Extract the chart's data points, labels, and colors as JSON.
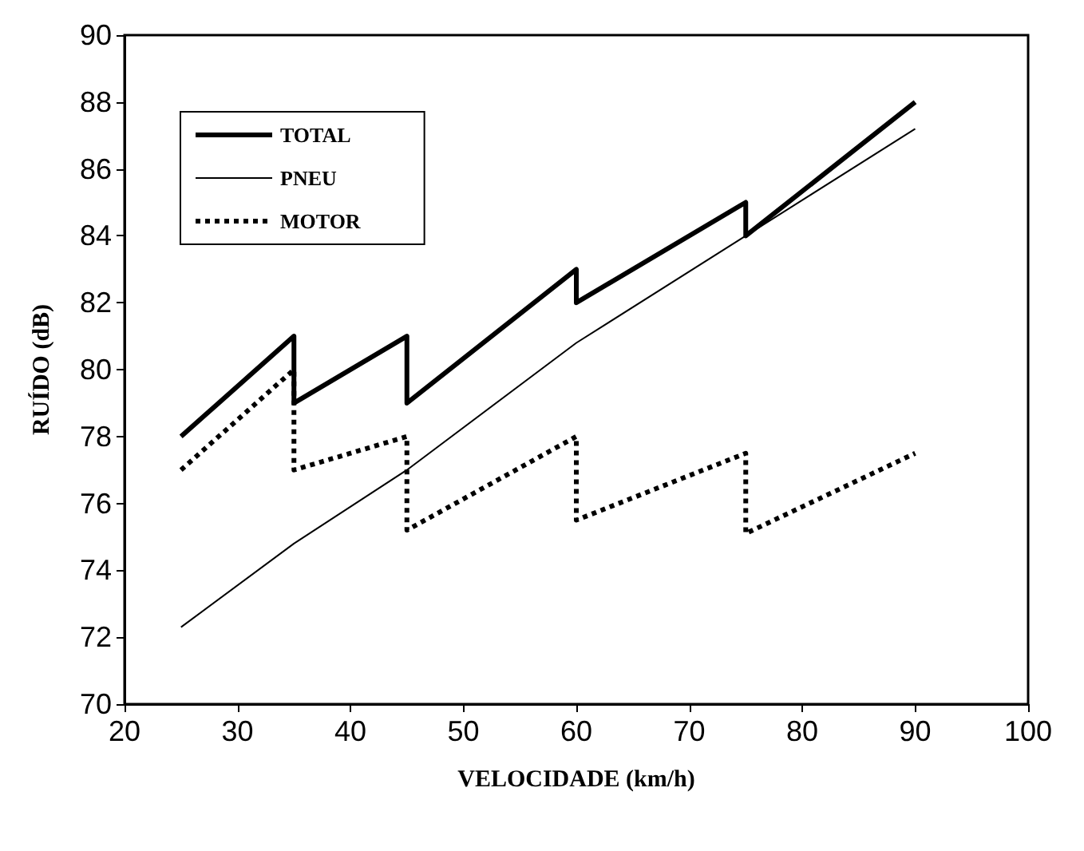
{
  "chart_data": {
    "type": "line",
    "xlabel": "VELOCIDADE (km/h)",
    "ylabel": "RUÍDO (dB)",
    "xlim": [
      20,
      100
    ],
    "xticks": [
      20,
      30,
      40,
      50,
      60,
      70,
      80,
      90,
      100
    ],
    "ylim": [
      70,
      90
    ],
    "yticks": [
      70,
      72,
      74,
      76,
      78,
      80,
      82,
      84,
      86,
      88,
      90
    ],
    "grid": false,
    "legend": "top left",
    "marker": "none",
    "series": [
      {
        "name": "TOTAL",
        "color": "#000000",
        "line_style": "solid",
        "x": [
          25,
          35,
          35,
          45,
          45,
          60,
          60,
          75,
          75,
          90
        ],
        "values": [
          78,
          81,
          79,
          81,
          79,
          83,
          82,
          85,
          84,
          88
        ]
      },
      {
        "name": "PNEU",
        "color": "#000000",
        "line_style": "solid",
        "x": [
          25,
          35,
          45,
          60,
          75,
          90
        ],
        "values": [
          72.3,
          74.8,
          77,
          80.8,
          84,
          87.2
        ]
      },
      {
        "name": "MOTOR",
        "color": "#000000",
        "line_style": "dotted",
        "x": [
          25,
          35,
          35,
          45,
          45,
          60,
          60,
          75,
          75,
          90
        ],
        "values": [
          77,
          80,
          77,
          78,
          75.2,
          78,
          75.5,
          77.5,
          75.1,
          77.5
        ]
      }
    ]
  }
}
